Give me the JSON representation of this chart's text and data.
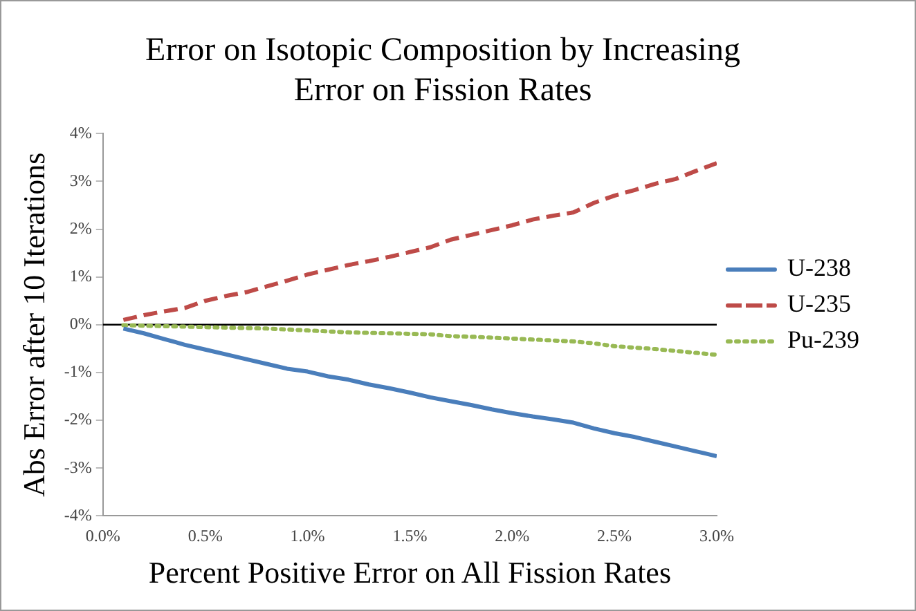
{
  "chart_data": {
    "type": "line",
    "title": "Error on Isotopic Composition by Increasing Error on Fission Rates",
    "xlabel": "Percent Positive Error on All Fission Rates",
    "ylabel": "Abs Error after 10 Iterations",
    "x": [
      0.1,
      0.2,
      0.3,
      0.4,
      0.5,
      0.6,
      0.7,
      0.8,
      0.9,
      1.0,
      1.1,
      1.2,
      1.3,
      1.4,
      1.5,
      1.6,
      1.7,
      1.8,
      1.9,
      2.0,
      2.1,
      2.2,
      2.3,
      2.4,
      2.5,
      2.6,
      2.7,
      2.8,
      2.9,
      3.0
    ],
    "series": [
      {
        "name": "U-238",
        "color": "#4a7ebb",
        "line_style": "solid",
        "values": [
          -0.08,
          -0.18,
          -0.3,
          -0.42,
          -0.52,
          -0.62,
          -0.72,
          -0.82,
          -0.92,
          -0.98,
          -1.08,
          -1.15,
          -1.25,
          -1.33,
          -1.42,
          -1.52,
          -1.6,
          -1.68,
          -1.77,
          -1.85,
          -1.92,
          -1.98,
          -2.05,
          -2.17,
          -2.27,
          -2.35,
          -2.45,
          -2.55,
          -2.65,
          -2.75
        ]
      },
      {
        "name": "U-235",
        "color": "#be4b48",
        "line_style": "dashed",
        "values": [
          0.1,
          0.2,
          0.28,
          0.35,
          0.5,
          0.6,
          0.68,
          0.8,
          0.92,
          1.05,
          1.15,
          1.25,
          1.33,
          1.42,
          1.52,
          1.62,
          1.78,
          1.88,
          1.98,
          2.08,
          2.2,
          2.28,
          2.35,
          2.55,
          2.7,
          2.82,
          2.95,
          3.05,
          3.22,
          3.38
        ]
      },
      {
        "name": "Pu-239",
        "color": "#98b954",
        "line_style": "dotted",
        "values": [
          -0.01,
          -0.02,
          -0.03,
          -0.04,
          -0.05,
          -0.06,
          -0.07,
          -0.08,
          -0.1,
          -0.12,
          -0.14,
          -0.16,
          -0.17,
          -0.18,
          -0.19,
          -0.2,
          -0.24,
          -0.25,
          -0.27,
          -0.29,
          -0.31,
          -0.33,
          -0.35,
          -0.39,
          -0.45,
          -0.48,
          -0.51,
          -0.55,
          -0.59,
          -0.63
        ]
      }
    ],
    "xlim": [
      0,
      3
    ],
    "xticks": [
      {
        "value": 0,
        "label": "0.0%"
      },
      {
        "value": 0.5,
        "label": "0.5%"
      },
      {
        "value": 1,
        "label": "1.0%"
      },
      {
        "value": 1.5,
        "label": "1.5%"
      },
      {
        "value": 2,
        "label": "2.0%"
      },
      {
        "value": 2.5,
        "label": "2.5%"
      },
      {
        "value": 3,
        "label": "3.0%"
      }
    ],
    "ylim": [
      -4,
      4
    ],
    "yticks": [
      {
        "value": -4,
        "label": "-4%"
      },
      {
        "value": -3,
        "label": "-3%"
      },
      {
        "value": -2,
        "label": "-2%"
      },
      {
        "value": -1,
        "label": "-1%"
      },
      {
        "value": 0,
        "label": "0%"
      },
      {
        "value": 1,
        "label": "1%"
      },
      {
        "value": 2,
        "label": "2%"
      },
      {
        "value": 3,
        "label": "3%"
      },
      {
        "value": 4,
        "label": "4%"
      }
    ],
    "ref_lines": [
      {
        "axis": "y",
        "value": 0,
        "color": "#000000"
      }
    ],
    "grid": false,
    "legend": "right",
    "marker": "none"
  }
}
